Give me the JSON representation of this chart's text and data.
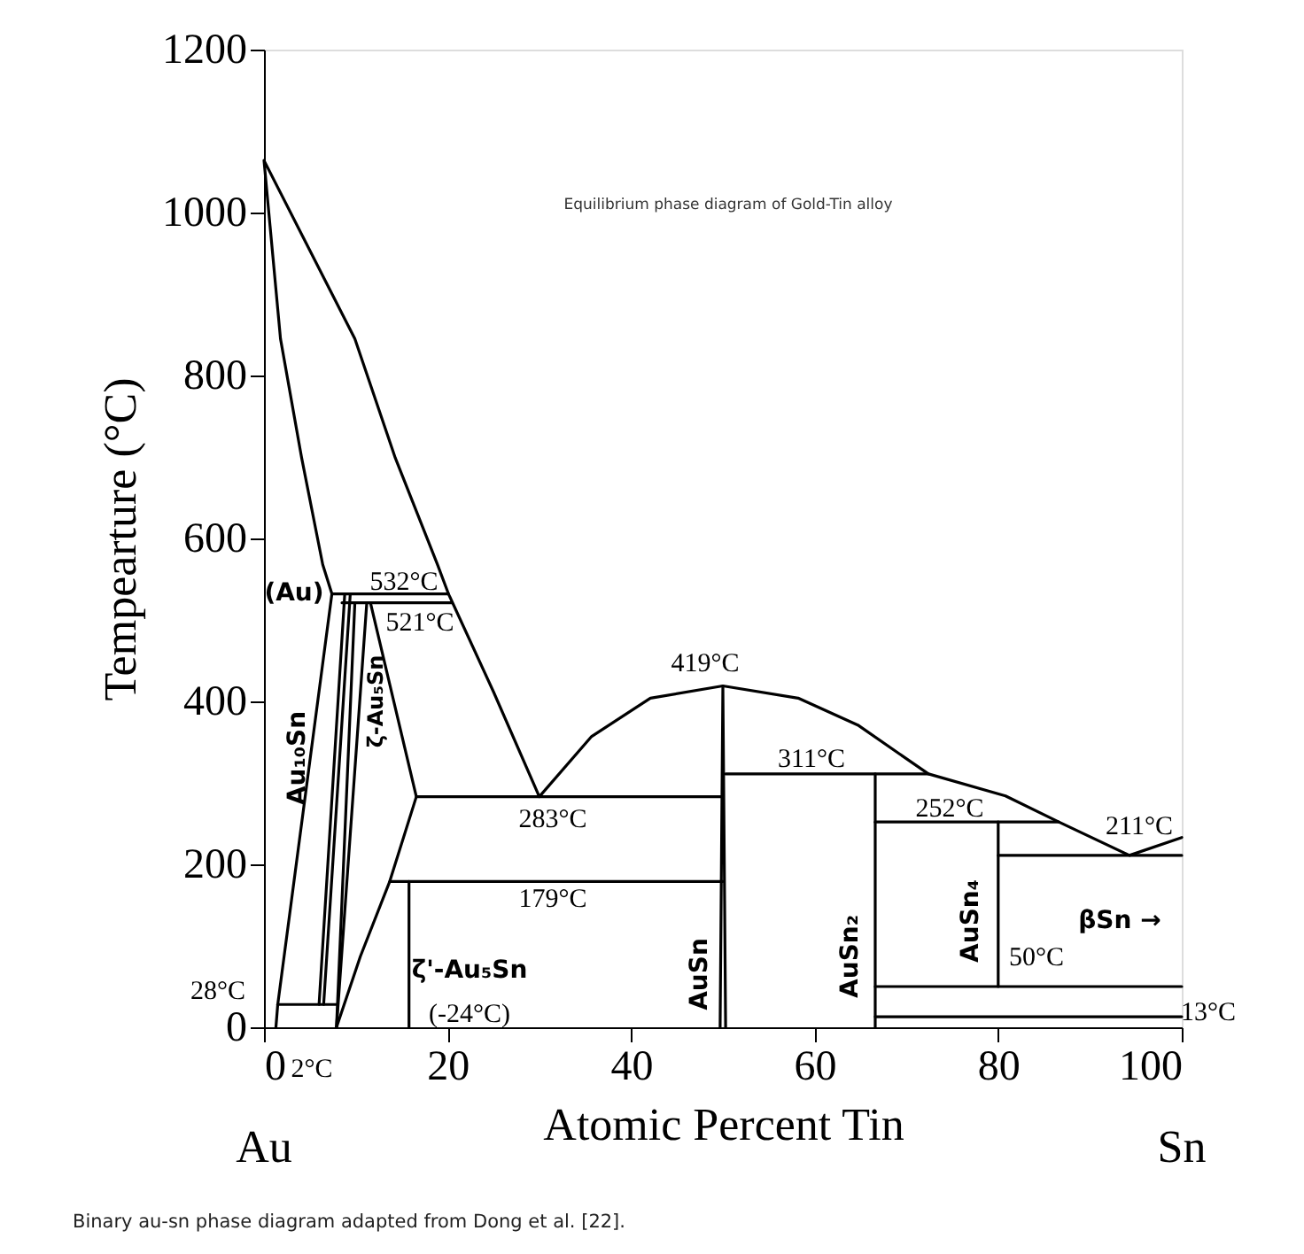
{
  "chart_data": {
    "type": "line",
    "title": "Equilibrium phase diagram of Gold-Tin alloy",
    "xlabel": "Atomic Percent Tin",
    "ylabel": "Tempearture (°C)",
    "xlim": [
      0,
      100
    ],
    "ylim": [
      0,
      1200
    ],
    "xticks": [
      0,
      20,
      40,
      60,
      80,
      100
    ],
    "yticks": [
      0,
      200,
      400,
      600,
      800,
      1000,
      1200
    ],
    "grid": false,
    "marker": "none",
    "line_style": "solid",
    "series": [
      {
        "color": "#000000",
        "x": [
          1.3,
          1.5,
          7.4,
          6.4,
          4.1,
          1.8,
          0,
          9.9,
          14.3,
          18.9,
          20.1,
          25,
          30,
          35.7,
          42.1,
          50,
          58.2,
          64.7,
          72.4,
          80.8,
          86.6,
          94.3,
          100
        ],
        "values": [
          0,
          28,
          532,
          568,
          699,
          845,
          1064,
          845,
          699,
          568,
          532,
          412,
          283,
          357,
          404,
          419,
          404,
          371,
          311,
          284,
          252,
          211,
          233
        ]
      },
      {
        "color": "#000000",
        "x": [
          8.8,
          6.0
        ],
        "values": [
          532,
          28
        ]
      },
      {
        "color": "#000000",
        "x": [
          9.4,
          6.5
        ],
        "values": [
          532,
          28
        ]
      },
      {
        "color": "#000000",
        "x": [
          9.9,
          7.9
        ],
        "values": [
          521,
          0
        ]
      },
      {
        "color": "#000000",
        "x": [
          11.2,
          7.9
        ],
        "values": [
          521,
          0
        ]
      },
      {
        "color": "#000000",
        "x": [
          11.6,
          16.6,
          13.7,
          10.5,
          7.9
        ],
        "values": [
          521,
          283,
          179,
          87,
          0
        ]
      },
      {
        "color": "#000000",
        "x": [
          7.4,
          20.1
        ],
        "values": [
          532,
          532
        ]
      },
      {
        "color": "#000000",
        "x": [
          8.5,
          20.5
        ],
        "values": [
          521,
          521
        ]
      },
      {
        "color": "#000000",
        "x": [
          1.5,
          7.9
        ],
        "values": [
          28,
          28
        ]
      },
      {
        "color": "#000000",
        "x": [
          16.6,
          50
        ],
        "values": [
          283,
          283
        ]
      },
      {
        "color": "#000000",
        "x": [
          13.7,
          50
        ],
        "values": [
          179,
          179
        ]
      },
      {
        "color": "#000000",
        "x": [
          15.8,
          15.8
        ],
        "values": [
          179,
          0
        ]
      },
      {
        "color": "#000000",
        "x": [
          49.7,
          50,
          50.3
        ],
        "values": [
          0,
          419,
          0
        ]
      },
      {
        "color": "#000000",
        "x": [
          50.3,
          72.4
        ],
        "values": [
          311,
          311
        ]
      },
      {
        "color": "#000000",
        "x": [
          66.6,
          66.6
        ],
        "values": [
          311,
          0
        ]
      },
      {
        "color": "#000000",
        "x": [
          66.6,
          86.6
        ],
        "values": [
          252,
          252
        ]
      },
      {
        "color": "#000000",
        "x": [
          80,
          80
        ],
        "values": [
          252,
          50
        ]
      },
      {
        "color": "#000000",
        "x": [
          80,
          100
        ],
        "values": [
          211,
          211
        ]
      },
      {
        "color": "#000000",
        "x": [
          66.6,
          100
        ],
        "values": [
          50,
          50
        ]
      },
      {
        "color": "#000000",
        "x": [
          66.6,
          100
        ],
        "values": [
          13,
          13
        ]
      }
    ],
    "annotations": [
      "532°C",
      "521°C",
      "(Au)",
      "Au₁₀Sn",
      "ζ-Au₅Sn",
      "283°C",
      "179°C",
      "ζ'-Au₅Sn",
      "(-24°C)",
      "28°C",
      "2°C",
      "419°C",
      "311°C",
      "252°C",
      "211°C",
      "AuSn",
      "AuSn₂",
      "AuSn₄",
      "50°C",
      "βSn →",
      "13°C",
      "Au",
      "Sn",
      "Binary au-sn phase diagram adapted from Dong et al. [22]."
    ]
  }
}
